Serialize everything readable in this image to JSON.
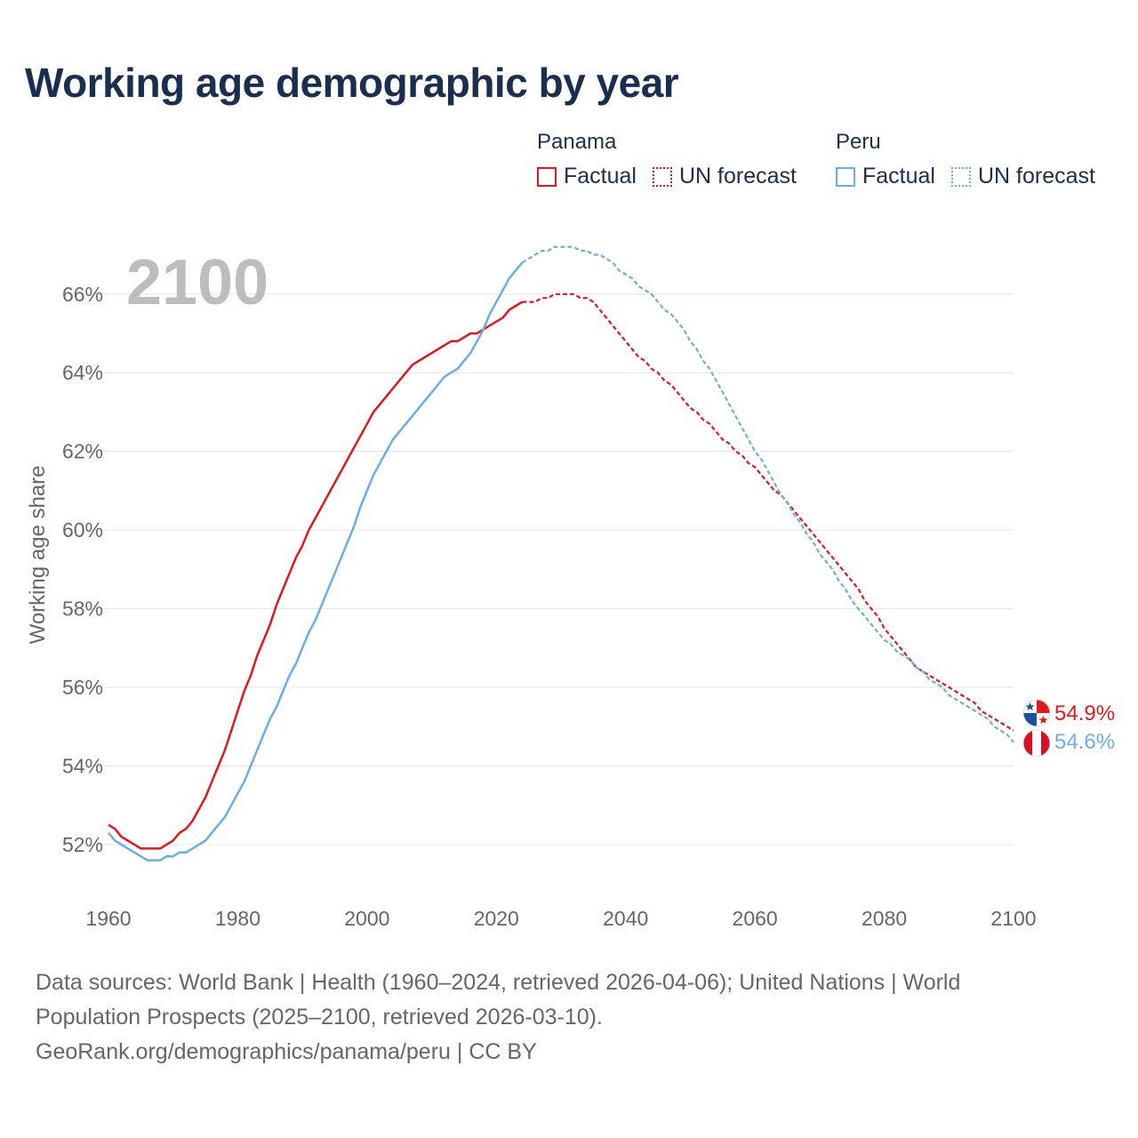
{
  "title": "Working age demographic by year",
  "year_watermark": "2100",
  "legend": {
    "panama": {
      "name": "Panama",
      "factual": "Factual",
      "forecast": "UN forecast",
      "color": "#e0191f"
    },
    "peru": {
      "name": "Peru",
      "factual": "Factual",
      "forecast": "UN forecast",
      "color": "#6aaee8"
    }
  },
  "end_labels": {
    "panama": "54.9%",
    "peru": "54.6%"
  },
  "footer": {
    "line1": "Data sources: World Bank | Health (1960–2024, retrieved 2026-04-06); United Nations | World",
    "line2": "Population Prospects (2025–2100, retrieved 2026-03-10).",
    "line3": "GeoRank.org/demographics/panama/peru | CC BY"
  },
  "chart_data": {
    "type": "line",
    "title": "Working age demographic by year",
    "xlabel": "",
    "ylabel": "Working age share",
    "xlim": [
      1960,
      2100
    ],
    "ylim": [
      50.8,
      67.6
    ],
    "x_ticks": [
      1960,
      1980,
      2000,
      2020,
      2040,
      2060,
      2080,
      2100
    ],
    "x_tick_labels": [
      "1960",
      "1980",
      "2000",
      "2020",
      "2040",
      "2060",
      "2080",
      "2100"
    ],
    "y_ticks": [
      52,
      54,
      56,
      58,
      60,
      62,
      64,
      66
    ],
    "y_tick_labels": [
      "52%",
      "54%",
      "56%",
      "58%",
      "60%",
      "62%",
      "64%",
      "66%"
    ],
    "grid": true,
    "forecast_start": 2024,
    "series": [
      {
        "name": "Panama",
        "color": "#e0191f",
        "end_value": 54.9,
        "points": [
          [
            1960,
            52.5
          ],
          [
            1961,
            52.4
          ],
          [
            1962,
            52.2
          ],
          [
            1963,
            52.1
          ],
          [
            1964,
            52.0
          ],
          [
            1965,
            51.9
          ],
          [
            1966,
            51.9
          ],
          [
            1967,
            51.9
          ],
          [
            1968,
            51.9
          ],
          [
            1969,
            52.0
          ],
          [
            1970,
            52.1
          ],
          [
            1971,
            52.3
          ],
          [
            1972,
            52.4
          ],
          [
            1973,
            52.6
          ],
          [
            1974,
            52.9
          ],
          [
            1975,
            53.2
          ],
          [
            1976,
            53.6
          ],
          [
            1977,
            54.0
          ],
          [
            1978,
            54.4
          ],
          [
            1979,
            54.9
          ],
          [
            1980,
            55.4
          ],
          [
            1981,
            55.9
          ],
          [
            1982,
            56.3
          ],
          [
            1983,
            56.8
          ],
          [
            1984,
            57.2
          ],
          [
            1985,
            57.6
          ],
          [
            1986,
            58.1
          ],
          [
            1987,
            58.5
          ],
          [
            1988,
            58.9
          ],
          [
            1989,
            59.3
          ],
          [
            1990,
            59.6
          ],
          [
            1991,
            60.0
          ],
          [
            1992,
            60.3
          ],
          [
            1993,
            60.6
          ],
          [
            1994,
            60.9
          ],
          [
            1995,
            61.2
          ],
          [
            1996,
            61.5
          ],
          [
            1997,
            61.8
          ],
          [
            1998,
            62.1
          ],
          [
            1999,
            62.4
          ],
          [
            2000,
            62.7
          ],
          [
            2001,
            63.0
          ],
          [
            2002,
            63.2
          ],
          [
            2003,
            63.4
          ],
          [
            2004,
            63.6
          ],
          [
            2005,
            63.8
          ],
          [
            2006,
            64.0
          ],
          [
            2007,
            64.2
          ],
          [
            2008,
            64.3
          ],
          [
            2009,
            64.4
          ],
          [
            2010,
            64.5
          ],
          [
            2011,
            64.6
          ],
          [
            2012,
            64.7
          ],
          [
            2013,
            64.8
          ],
          [
            2014,
            64.8
          ],
          [
            2015,
            64.9
          ],
          [
            2016,
            65.0
          ],
          [
            2017,
            65.0
          ],
          [
            2018,
            65.1
          ],
          [
            2019,
            65.2
          ],
          [
            2020,
            65.3
          ],
          [
            2021,
            65.4
          ],
          [
            2022,
            65.6
          ],
          [
            2023,
            65.7
          ],
          [
            2024,
            65.8
          ],
          [
            2025,
            65.8
          ],
          [
            2026,
            65.8
          ],
          [
            2027,
            65.9
          ],
          [
            2028,
            65.9
          ],
          [
            2029,
            66.0
          ],
          [
            2030,
            66.0
          ],
          [
            2031,
            66.0
          ],
          [
            2032,
            66.0
          ],
          [
            2033,
            65.9
          ],
          [
            2034,
            65.9
          ],
          [
            2035,
            65.8
          ],
          [
            2036,
            65.6
          ],
          [
            2037,
            65.4
          ],
          [
            2038,
            65.2
          ],
          [
            2039,
            65.0
          ],
          [
            2040,
            64.8
          ],
          [
            2041,
            64.6
          ],
          [
            2042,
            64.4
          ],
          [
            2043,
            64.3
          ],
          [
            2044,
            64.1
          ],
          [
            2045,
            64.0
          ],
          [
            2046,
            63.8
          ],
          [
            2047,
            63.7
          ],
          [
            2048,
            63.5
          ],
          [
            2049,
            63.3
          ],
          [
            2050,
            63.1
          ],
          [
            2051,
            63.0
          ],
          [
            2052,
            62.8
          ],
          [
            2053,
            62.7
          ],
          [
            2054,
            62.5
          ],
          [
            2055,
            62.3
          ],
          [
            2056,
            62.2
          ],
          [
            2057,
            62.0
          ],
          [
            2058,
            61.9
          ],
          [
            2059,
            61.7
          ],
          [
            2060,
            61.6
          ],
          [
            2061,
            61.4
          ],
          [
            2062,
            61.2
          ],
          [
            2063,
            61.0
          ],
          [
            2064,
            60.9
          ],
          [
            2065,
            60.7
          ],
          [
            2066,
            60.5
          ],
          [
            2067,
            60.3
          ],
          [
            2068,
            60.1
          ],
          [
            2069,
            59.9
          ],
          [
            2070,
            59.7
          ],
          [
            2071,
            59.5
          ],
          [
            2072,
            59.3
          ],
          [
            2073,
            59.1
          ],
          [
            2074,
            58.9
          ],
          [
            2075,
            58.7
          ],
          [
            2076,
            58.5
          ],
          [
            2077,
            58.2
          ],
          [
            2078,
            58.0
          ],
          [
            2079,
            57.8
          ],
          [
            2080,
            57.5
          ],
          [
            2081,
            57.3
          ],
          [
            2082,
            57.1
          ],
          [
            2083,
            56.9
          ],
          [
            2084,
            56.7
          ],
          [
            2085,
            56.5
          ],
          [
            2086,
            56.4
          ],
          [
            2087,
            56.3
          ],
          [
            2088,
            56.2
          ],
          [
            2089,
            56.1
          ],
          [
            2090,
            56.0
          ],
          [
            2091,
            55.9
          ],
          [
            2092,
            55.8
          ],
          [
            2093,
            55.7
          ],
          [
            2094,
            55.6
          ],
          [
            2095,
            55.4
          ],
          [
            2096,
            55.3
          ],
          [
            2097,
            55.2
          ],
          [
            2098,
            55.1
          ],
          [
            2099,
            55.0
          ],
          [
            2100,
            54.9
          ]
        ]
      },
      {
        "name": "Peru",
        "color": "#6aaee8",
        "end_value": 54.6,
        "points": [
          [
            1960,
            52.3
          ],
          [
            1961,
            52.1
          ],
          [
            1962,
            52.0
          ],
          [
            1963,
            51.9
          ],
          [
            1964,
            51.8
          ],
          [
            1965,
            51.7
          ],
          [
            1966,
            51.6
          ],
          [
            1967,
            51.6
          ],
          [
            1968,
            51.6
          ],
          [
            1969,
            51.7
          ],
          [
            1970,
            51.7
          ],
          [
            1971,
            51.8
          ],
          [
            1972,
            51.8
          ],
          [
            1973,
            51.9
          ],
          [
            1974,
            52.0
          ],
          [
            1975,
            52.1
          ],
          [
            1976,
            52.3
          ],
          [
            1977,
            52.5
          ],
          [
            1978,
            52.7
          ],
          [
            1979,
            53.0
          ],
          [
            1980,
            53.3
          ],
          [
            1981,
            53.6
          ],
          [
            1982,
            54.0
          ],
          [
            1983,
            54.4
          ],
          [
            1984,
            54.8
          ],
          [
            1985,
            55.2
          ],
          [
            1986,
            55.5
          ],
          [
            1987,
            55.9
          ],
          [
            1988,
            56.3
          ],
          [
            1989,
            56.6
          ],
          [
            1990,
            57.0
          ],
          [
            1991,
            57.4
          ],
          [
            1992,
            57.7
          ],
          [
            1993,
            58.1
          ],
          [
            1994,
            58.5
          ],
          [
            1995,
            58.9
          ],
          [
            1996,
            59.3
          ],
          [
            1997,
            59.7
          ],
          [
            1998,
            60.1
          ],
          [
            1999,
            60.6
          ],
          [
            2000,
            61.0
          ],
          [
            2001,
            61.4
          ],
          [
            2002,
            61.7
          ],
          [
            2003,
            62.0
          ],
          [
            2004,
            62.3
          ],
          [
            2005,
            62.5
          ],
          [
            2006,
            62.7
          ],
          [
            2007,
            62.9
          ],
          [
            2008,
            63.1
          ],
          [
            2009,
            63.3
          ],
          [
            2010,
            63.5
          ],
          [
            2011,
            63.7
          ],
          [
            2012,
            63.9
          ],
          [
            2013,
            64.0
          ],
          [
            2014,
            64.1
          ],
          [
            2015,
            64.3
          ],
          [
            2016,
            64.5
          ],
          [
            2017,
            64.8
          ],
          [
            2018,
            65.1
          ],
          [
            2019,
            65.5
          ],
          [
            2020,
            65.8
          ],
          [
            2021,
            66.1
          ],
          [
            2022,
            66.4
          ],
          [
            2023,
            66.6
          ],
          [
            2024,
            66.8
          ],
          [
            2025,
            66.9
          ],
          [
            2026,
            67.0
          ],
          [
            2027,
            67.1
          ],
          [
            2028,
            67.1
          ],
          [
            2029,
            67.2
          ],
          [
            2030,
            67.2
          ],
          [
            2031,
            67.2
          ],
          [
            2032,
            67.2
          ],
          [
            2033,
            67.1
          ],
          [
            2034,
            67.1
          ],
          [
            2035,
            67.0
          ],
          [
            2036,
            67.0
          ],
          [
            2037,
            66.9
          ],
          [
            2038,
            66.8
          ],
          [
            2039,
            66.6
          ],
          [
            2040,
            66.5
          ],
          [
            2041,
            66.4
          ],
          [
            2042,
            66.2
          ],
          [
            2043,
            66.1
          ],
          [
            2044,
            66.0
          ],
          [
            2045,
            65.8
          ],
          [
            2046,
            65.6
          ],
          [
            2047,
            65.5
          ],
          [
            2048,
            65.3
          ],
          [
            2049,
            65.1
          ],
          [
            2050,
            64.8
          ],
          [
            2051,
            64.6
          ],
          [
            2052,
            64.3
          ],
          [
            2053,
            64.1
          ],
          [
            2054,
            63.8
          ],
          [
            2055,
            63.5
          ],
          [
            2056,
            63.2
          ],
          [
            2057,
            62.9
          ],
          [
            2058,
            62.6
          ],
          [
            2059,
            62.3
          ],
          [
            2060,
            62.0
          ],
          [
            2061,
            61.8
          ],
          [
            2062,
            61.5
          ],
          [
            2063,
            61.2
          ],
          [
            2064,
            60.9
          ],
          [
            2065,
            60.7
          ],
          [
            2066,
            60.4
          ],
          [
            2067,
            60.2
          ],
          [
            2068,
            59.9
          ],
          [
            2069,
            59.7
          ],
          [
            2070,
            59.4
          ],
          [
            2071,
            59.2
          ],
          [
            2072,
            59.0
          ],
          [
            2073,
            58.7
          ],
          [
            2074,
            58.5
          ],
          [
            2075,
            58.2
          ],
          [
            2076,
            58.0
          ],
          [
            2077,
            57.8
          ],
          [
            2078,
            57.6
          ],
          [
            2079,
            57.4
          ],
          [
            2080,
            57.2
          ],
          [
            2081,
            57.1
          ],
          [
            2082,
            56.9
          ],
          [
            2083,
            56.8
          ],
          [
            2084,
            56.7
          ],
          [
            2085,
            56.5
          ],
          [
            2086,
            56.4
          ],
          [
            2087,
            56.2
          ],
          [
            2088,
            56.1
          ],
          [
            2089,
            56.0
          ],
          [
            2090,
            55.8
          ],
          [
            2091,
            55.7
          ],
          [
            2092,
            55.6
          ],
          [
            2093,
            55.5
          ],
          [
            2094,
            55.4
          ],
          [
            2095,
            55.3
          ],
          [
            2096,
            55.2
          ],
          [
            2097,
            55.0
          ],
          [
            2098,
            54.9
          ],
          [
            2099,
            54.8
          ],
          [
            2100,
            54.6
          ]
        ]
      }
    ]
  }
}
